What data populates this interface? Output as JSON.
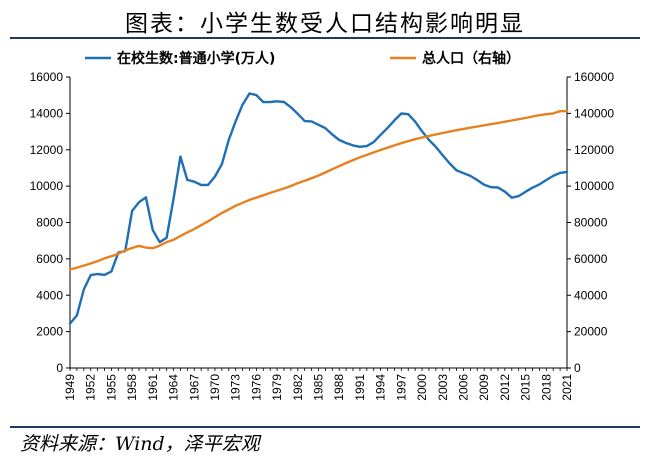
{
  "header": {
    "title": "图表：小学生数受人口结构影响明显"
  },
  "footer": {
    "source": "资料来源：Wind，泽平宏观"
  },
  "chart_data": {
    "type": "line",
    "title": "图表：小学生数受人口结构影响明显",
    "xlabel": "",
    "ylabel_left": "",
    "ylabel_right": "",
    "xlim": [
      1949,
      2021
    ],
    "ylim_left": [
      0,
      16000
    ],
    "ylim_right": [
      0,
      160000
    ],
    "yticks_left": [
      0,
      2000,
      4000,
      6000,
      8000,
      10000,
      12000,
      14000,
      16000
    ],
    "yticks_right": [
      0,
      20000,
      40000,
      60000,
      80000,
      100000,
      120000,
      140000,
      160000
    ],
    "xticks": [
      1949,
      1952,
      1955,
      1958,
      1961,
      1964,
      1967,
      1970,
      1973,
      1976,
      1979,
      1982,
      1985,
      1988,
      1991,
      1994,
      1997,
      2000,
      2003,
      2006,
      2009,
      2012,
      2015,
      2018,
      2021
    ],
    "grid": false,
    "legend": "top",
    "series": [
      {
        "name": "在校生数:普通小学(万人)",
        "axis": "left",
        "color": "#1f6fb4",
        "x": [
          1949,
          1950,
          1951,
          1952,
          1953,
          1954,
          1955,
          1956,
          1957,
          1958,
          1959,
          1960,
          1961,
          1962,
          1963,
          1964,
          1965,
          1966,
          1967,
          1968,
          1969,
          1970,
          1971,
          1972,
          1973,
          1974,
          1975,
          1976,
          1977,
          1978,
          1979,
          1980,
          1981,
          1982,
          1983,
          1984,
          1985,
          1986,
          1987,
          1988,
          1989,
          1990,
          1991,
          1992,
          1993,
          1994,
          1995,
          1996,
          1997,
          1998,
          1999,
          2000,
          2001,
          2002,
          2003,
          2004,
          2005,
          2006,
          2007,
          2008,
          2009,
          2010,
          2011,
          2012,
          2013,
          2014,
          2015,
          2016,
          2017,
          2018,
          2019,
          2020,
          2021
        ],
        "values": [
          2439,
          2892,
          4315,
          5110,
          5166,
          5121,
          5313,
          6347,
          6428,
          8640,
          9118,
          9379,
          7579,
          6924,
          7157,
          9294,
          11621,
          10342,
          10244,
          10063,
          10067,
          10528,
          11212,
          12549,
          13570,
          14481,
          15094,
          15006,
          14618,
          14624,
          14663,
          14627,
          14333,
          13972,
          13578,
          13557,
          13370,
          13183,
          12836,
          12536,
          12373,
          12241,
          12164,
          12201,
          12421,
          12823,
          13195,
          13615,
          13995,
          13954,
          13548,
          13013,
          12544,
          12157,
          11690,
          11246,
          10864,
          10712,
          10564,
          10332,
          10072,
          9941,
          9926,
          9695,
          9361,
          9451,
          9692,
          9913,
          10094,
          10339,
          10561,
          10725,
          10780
        ]
      },
      {
        "name": "总人口（右轴）",
        "axis": "right",
        "color": "#e8801f",
        "x": [
          1949,
          1950,
          1951,
          1952,
          1953,
          1954,
          1955,
          1956,
          1957,
          1958,
          1959,
          1960,
          1961,
          1962,
          1963,
          1964,
          1965,
          1966,
          1967,
          1968,
          1969,
          1970,
          1971,
          1972,
          1973,
          1974,
          1975,
          1976,
          1977,
          1978,
          1979,
          1980,
          1981,
          1982,
          1983,
          1984,
          1985,
          1986,
          1987,
          1988,
          1989,
          1990,
          1991,
          1992,
          1993,
          1994,
          1995,
          1996,
          1997,
          1998,
          1999,
          2000,
          2001,
          2002,
          2003,
          2004,
          2005,
          2006,
          2007,
          2008,
          2009,
          2010,
          2011,
          2012,
          2013,
          2014,
          2015,
          2016,
          2017,
          2018,
          2019,
          2020,
          2021
        ],
        "values": [
          54167,
          55196,
          56300,
          57482,
          58796,
          60266,
          61465,
          62828,
          64653,
          65994,
          67207,
          66207,
          65859,
          67295,
          69172,
          70499,
          72538,
          74542,
          76368,
          78534,
          80671,
          82992,
          85229,
          87177,
          89211,
          90859,
          92420,
          93717,
          94974,
          96259,
          97542,
          98705,
          100072,
          101654,
          103008,
          104357,
          105851,
          107507,
          109300,
          111026,
          112704,
          114333,
          115823,
          117171,
          118517,
          119850,
          121121,
          122389,
          123626,
          124761,
          125786,
          126743,
          127627,
          128453,
          129227,
          129988,
          130756,
          131448,
          132129,
          132802,
          133450,
          134091,
          134735,
          135404,
          136072,
          136782,
          137462,
          138271,
          139008,
          139538,
          140005,
          141212,
          141260
        ]
      }
    ]
  }
}
